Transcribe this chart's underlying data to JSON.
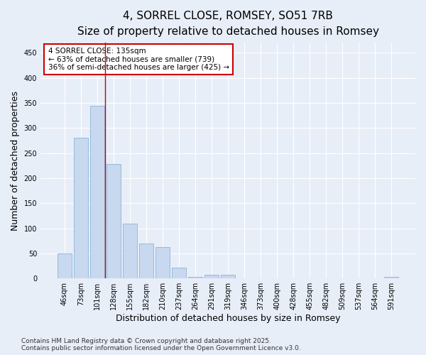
{
  "title": "4, SORREL CLOSE, ROMSEY, SO51 7RB",
  "subtitle": "Size of property relative to detached houses in Romsey",
  "xlabel": "Distribution of detached houses by size in Romsey",
  "ylabel": "Number of detached properties",
  "categories": [
    "46sqm",
    "73sqm",
    "101sqm",
    "128sqm",
    "155sqm",
    "182sqm",
    "210sqm",
    "237sqm",
    "264sqm",
    "291sqm",
    "319sqm",
    "346sqm",
    "373sqm",
    "400sqm",
    "428sqm",
    "455sqm",
    "482sqm",
    "509sqm",
    "537sqm",
    "564sqm",
    "591sqm"
  ],
  "values": [
    50,
    280,
    345,
    228,
    110,
    70,
    63,
    22,
    3,
    7,
    8,
    0,
    0,
    0,
    0,
    0,
    0,
    0,
    0,
    0,
    3
  ],
  "bar_color": "#c8d8ef",
  "bar_edge_color": "#8ab4d8",
  "background_color": "#e8eef8",
  "grid_color": "#ffffff",
  "annotation_line1": "4 SORREL CLOSE: 135sqm",
  "annotation_line2": "← 63% of detached houses are smaller (739)",
  "annotation_line3": "36% of semi-detached houses are larger (425) →",
  "annotation_box_facecolor": "#ffffff",
  "annotation_box_edgecolor": "#cc0000",
  "red_line_x": 2.5,
  "ylim": [
    0,
    470
  ],
  "yticks": [
    0,
    50,
    100,
    150,
    200,
    250,
    300,
    350,
    400,
    450
  ],
  "footer": "Contains HM Land Registry data © Crown copyright and database right 2025.\nContains public sector information licensed under the Open Government Licence v3.0.",
  "title_fontsize": 11,
  "subtitle_fontsize": 9.5,
  "axis_label_fontsize": 9,
  "tick_fontsize": 7,
  "annotation_fontsize": 7.5,
  "footer_fontsize": 6.5
}
